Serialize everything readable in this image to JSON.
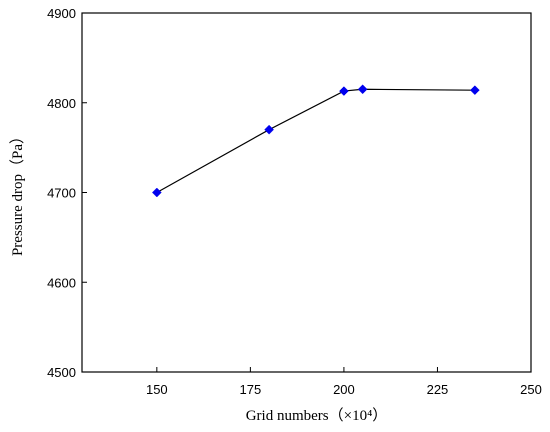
{
  "chart_data": {
    "type": "line",
    "xlabel": "Grid numbers（×10⁴）",
    "ylabel": "Pressure drop（Pa）",
    "xlim": [
      130,
      250
    ],
    "ylim": [
      4500,
      4900
    ],
    "xticks": [
      150,
      175,
      200,
      225,
      250
    ],
    "yticks": [
      4500,
      4600,
      4700,
      4800,
      4900
    ],
    "series": [
      {
        "x": [
          150,
          180,
          200,
          205,
          235
        ],
        "y": [
          4700,
          4770,
          4813,
          4815,
          4814
        ]
      }
    ],
    "marker": "diamond",
    "marker_color": "#0000ee",
    "line_color": "#000000",
    "grid": false,
    "legend": "none"
  }
}
